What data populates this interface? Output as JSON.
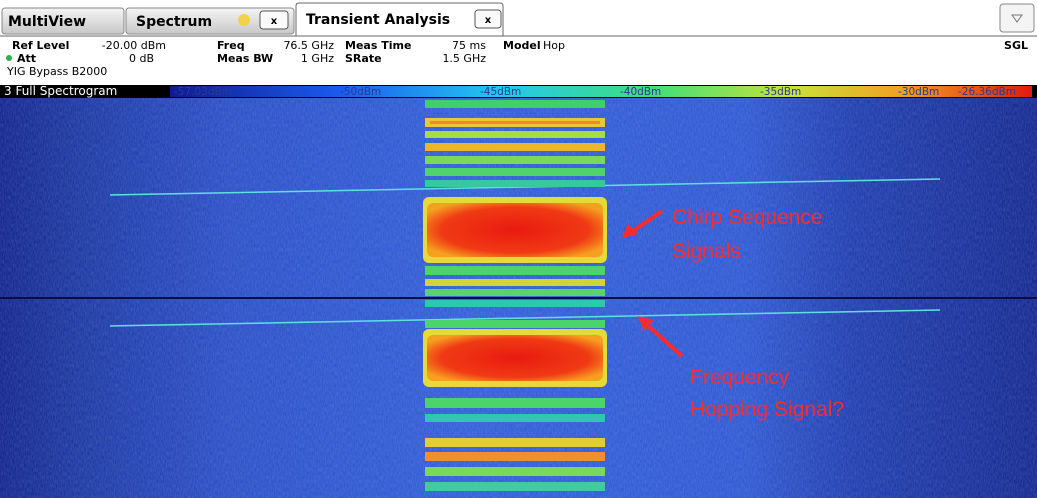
{
  "tabs": [
    {
      "label": "MultiView"
    },
    {
      "label": "Spectrum",
      "close": "x"
    },
    {
      "label": "Transient Analysis",
      "close": "x"
    }
  ],
  "settings": [
    {
      "label": "Ref Level",
      "value": "-20.00 dBm"
    },
    {
      "label": "Att",
      "value": "0 dB"
    },
    {
      "label": "Freq",
      "value": "76.5 GHz"
    },
    {
      "label": "Meas BW",
      "value": "1 GHz"
    },
    {
      "label": "Meas Time",
      "value": "75 ms"
    },
    {
      "label": "SRate",
      "value": "1.5 GHz"
    },
    {
      "label": "Model",
      "value": "Hop"
    }
  ],
  "note": "YIG Bypass B2000",
  "mode": "SGL",
  "spectrogram": {
    "title": "3 Full Spectrogram",
    "scale": [
      "-57.03dBm",
      "-50dBm",
      "-45dBm",
      "-40dBm",
      "-35dBm",
      "-30dBm",
      "-26.36dBm"
    ]
  },
  "annotations": [
    {
      "lines": [
        "Chirp Sequence",
        "Signals"
      ]
    },
    {
      "lines": [
        "Frequency",
        "Hopping Signal?"
      ]
    }
  ]
}
